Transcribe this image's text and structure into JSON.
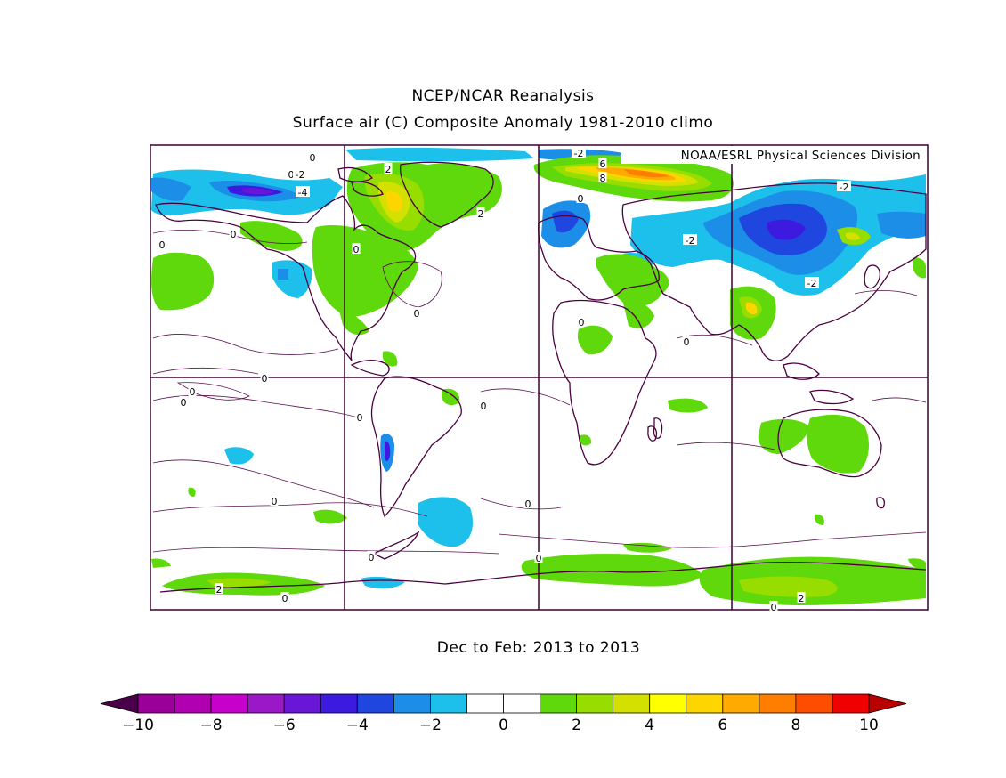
{
  "title_line1": "NCEP/NCAR Reanalysis",
  "title_line2": "Surface air (C) Composite Anomaly 1981-2010 climo",
  "credit": "NOAA/ESRL Physical Sciences Division",
  "period": "Dec to Feb: 2013 to 2013",
  "colorbar": {
    "ticks": [
      "-10",
      "-8",
      "-6",
      "-4",
      "-2",
      "0",
      "2",
      "4",
      "6",
      "8",
      "10"
    ],
    "colors": [
      "#9a0099",
      "#b000b2",
      "#c800cc",
      "#9b18c9",
      "#6a16d6",
      "#3c1ae0",
      "#1f47e0",
      "#1c8ee8",
      "#1cc0ea",
      "#ffffff",
      "#ffffff",
      "#5fd80c",
      "#98dd00",
      "#d4e000",
      "#ffff00",
      "#ffd500",
      "#ffaa00",
      "#ff7e00",
      "#ff4d00",
      "#f00000"
    ],
    "low_end_color": "#4a0048",
    "high_end_color": "#b80000"
  },
  "contour_labels": [
    "0",
    "0",
    "-2",
    "2",
    "-4",
    "2",
    "0",
    "0",
    "0",
    "0",
    "0",
    "0",
    "0",
    "0",
    "0",
    "0",
    "0",
    "0",
    "0",
    "2",
    "0",
    "2",
    "-2",
    "-2",
    "-2",
    "6",
    "8",
    "0",
    "0",
    "0",
    "-2",
    "2",
    "0"
  ]
}
